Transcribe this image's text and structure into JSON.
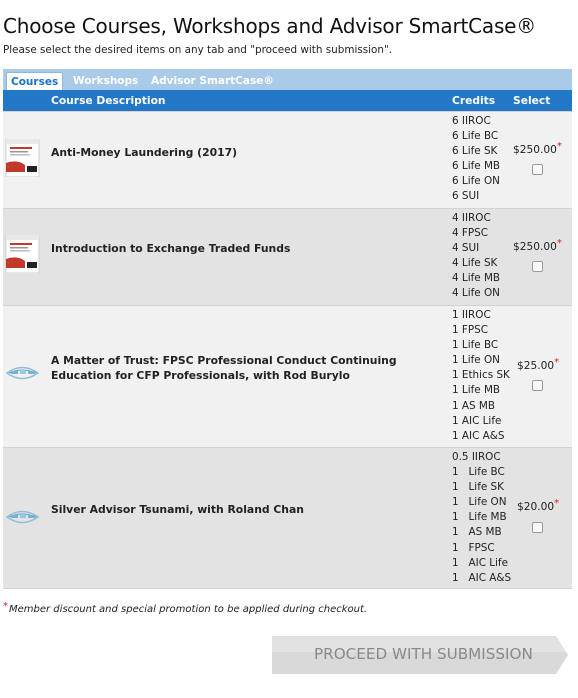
{
  "page": {
    "title": "Choose Courses, Workshops and Advisor SmartCase®",
    "subtitle": "Please select the desired items on any tab and \"proceed with submission\"."
  },
  "tabs": [
    {
      "label": "Courses",
      "active": true
    },
    {
      "label": "Workshops",
      "active": false
    },
    {
      "label": "Advisor SmartCase®",
      "active": false
    }
  ],
  "table": {
    "headers": {
      "description": "Course Description",
      "credits": "Credits",
      "select": "Select"
    },
    "rows": [
      {
        "icon": "book-cover-icon",
        "name": "Anti-Money Laundering (2017)",
        "credits": [
          "6 IIROC",
          "6 Life BC",
          "6 Life SK",
          "6 Life MB",
          "6 Life ON",
          "6 SUI"
        ],
        "price": "$250.00",
        "asterisk": "*",
        "selected": false
      },
      {
        "icon": "book-cover-icon",
        "name": "Introduction to Exchange Traded Funds",
        "credits": [
          "4 IIROC",
          "4 FPSC",
          "4 SUI",
          "4 Life SK",
          "4 Life MB",
          "4 Life ON"
        ],
        "price": "$250.00",
        "asterisk": "*",
        "selected": false
      },
      {
        "icon": "partner-logo-icon",
        "name": "A Matter of Trust: FPSC Professional Conduct Continuing Education for CFP Professionals, with Rod Burylo",
        "credits": [
          "1 IIROC",
          "1 FPSC",
          "1 Life BC",
          "1 Life ON",
          "1 Ethics SK",
          "1 Life MB",
          "1 AS MB",
          "1 AIC Life",
          "1 AIC A&S"
        ],
        "price": "$25.00",
        "asterisk": "*",
        "selected": false
      },
      {
        "icon": "partner-logo-icon",
        "name": "Silver Advisor Tsunami, with Roland Chan",
        "credits": [
          "0.5 IIROC",
          "1   Life BC",
          "1   Life SK",
          "1   Life ON",
          "1   Life MB",
          "1   AS MB",
          "1   FPSC",
          "1   AIC Life",
          "1   AIC A&S"
        ],
        "price": "$20.00",
        "asterisk": "*",
        "selected": false
      }
    ]
  },
  "footnote": {
    "asterisk": "*",
    "text": "Member discount and special promotion to be applied during checkout."
  },
  "proceed_button": {
    "label": "PROCEED WITH SUBMISSION"
  },
  "colors": {
    "header_blue": "#2277c6",
    "tabbar_blue": "#a9cbe9",
    "row_light": "#f1f1f1",
    "row_dark": "#e3e3e3",
    "asterisk_red": "#d21f1f",
    "button_gray": "#d9d9d9"
  }
}
